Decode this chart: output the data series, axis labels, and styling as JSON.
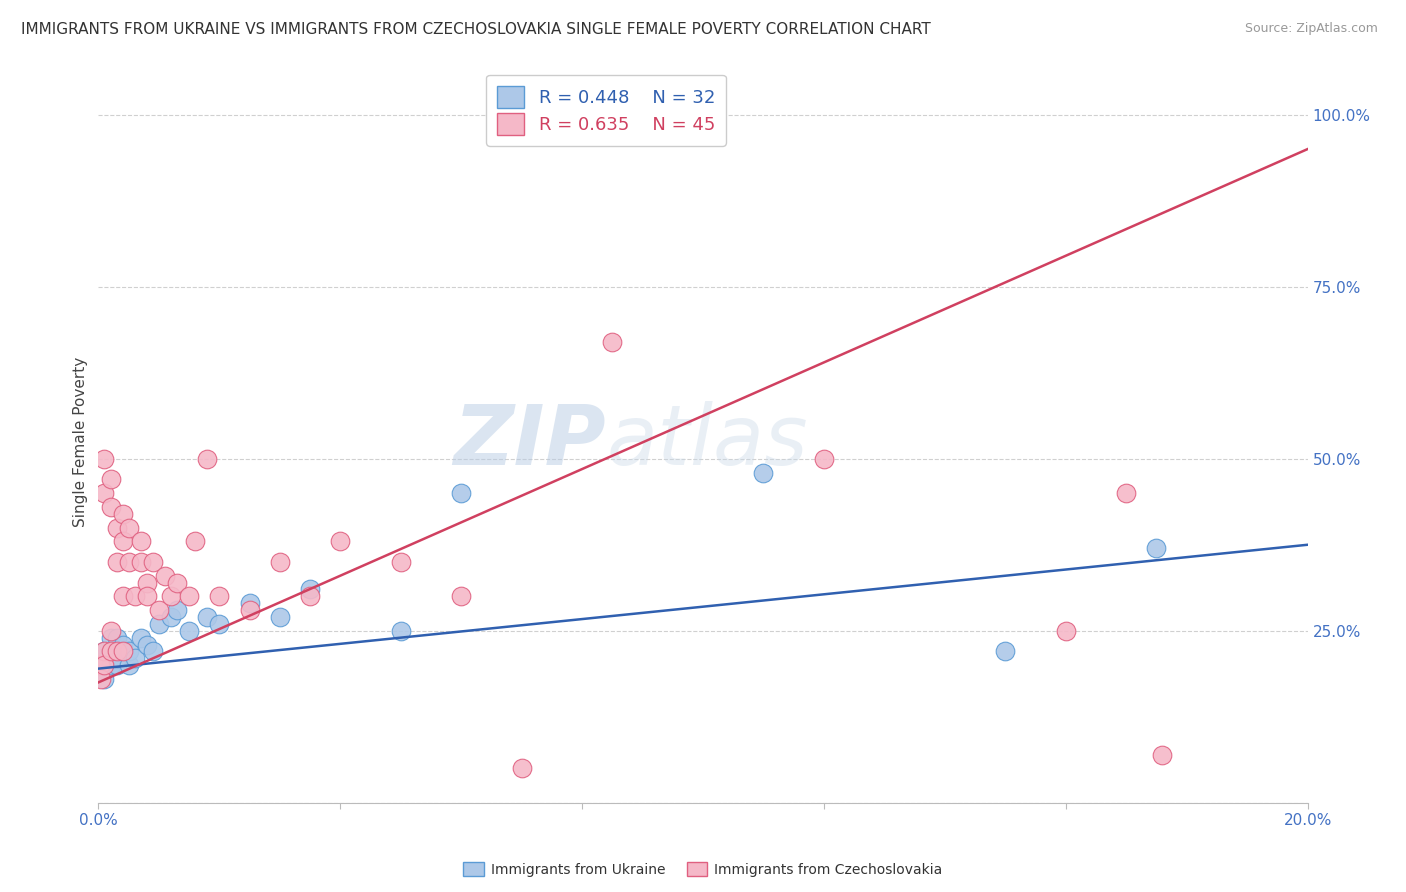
{
  "title": "IMMIGRANTS FROM UKRAINE VS IMMIGRANTS FROM CZECHOSLOVAKIA SINGLE FEMALE POVERTY CORRELATION CHART",
  "source": "Source: ZipAtlas.com",
  "ylabel": "Single Female Poverty",
  "xlim": [
    0.0,
    0.2
  ],
  "ylim": [
    0.0,
    1.05
  ],
  "xticks": [
    0.0,
    0.04,
    0.08,
    0.12,
    0.16,
    0.2
  ],
  "xticklabels": [
    "0.0%",
    "",
    "",
    "",
    "",
    "20.0%"
  ],
  "yticks": [
    0.0,
    0.25,
    0.5,
    0.75,
    1.0
  ],
  "yticklabels_right": [
    "",
    "25.0%",
    "50.0%",
    "75.0%",
    "100.0%"
  ],
  "ukraine_color": "#adc8e8",
  "ukraine_edge": "#5b9bd5",
  "czechoslovakia_color": "#f5b8c8",
  "czechoslovakia_edge": "#e06080",
  "ukraine_line_color": "#3060b0",
  "czechoslovakia_line_color": "#d04060",
  "legend_ukraine_R": "R = 0.448",
  "legend_ukraine_N": "N = 32",
  "legend_czech_R": "R = 0.635",
  "legend_czech_N": "N = 45",
  "watermark_zip": "ZIP",
  "watermark_atlas": "atlas",
  "ukraine_x": [
    0.0005,
    0.001,
    0.001,
    0.001,
    0.002,
    0.002,
    0.002,
    0.003,
    0.003,
    0.003,
    0.004,
    0.004,
    0.005,
    0.005,
    0.006,
    0.007,
    0.008,
    0.009,
    0.01,
    0.012,
    0.013,
    0.015,
    0.018,
    0.02,
    0.025,
    0.03,
    0.035,
    0.05,
    0.06,
    0.11,
    0.15,
    0.175
  ],
  "ukraine_y": [
    0.195,
    0.18,
    0.21,
    0.22,
    0.2,
    0.22,
    0.24,
    0.2,
    0.21,
    0.24,
    0.22,
    0.23,
    0.2,
    0.22,
    0.21,
    0.24,
    0.23,
    0.22,
    0.26,
    0.27,
    0.28,
    0.25,
    0.27,
    0.26,
    0.29,
    0.27,
    0.31,
    0.25,
    0.45,
    0.48,
    0.22,
    0.37
  ],
  "czechoslovakia_x": [
    0.0003,
    0.0005,
    0.001,
    0.001,
    0.001,
    0.001,
    0.002,
    0.002,
    0.002,
    0.002,
    0.003,
    0.003,
    0.003,
    0.004,
    0.004,
    0.004,
    0.004,
    0.005,
    0.005,
    0.006,
    0.007,
    0.007,
    0.008,
    0.008,
    0.009,
    0.01,
    0.011,
    0.012,
    0.013,
    0.015,
    0.016,
    0.018,
    0.02,
    0.025,
    0.03,
    0.035,
    0.04,
    0.05,
    0.06,
    0.07,
    0.085,
    0.12,
    0.16,
    0.17,
    0.176
  ],
  "czechoslovakia_y": [
    0.2,
    0.18,
    0.22,
    0.5,
    0.45,
    0.2,
    0.25,
    0.43,
    0.47,
    0.22,
    0.4,
    0.35,
    0.22,
    0.38,
    0.42,
    0.3,
    0.22,
    0.4,
    0.35,
    0.3,
    0.38,
    0.35,
    0.32,
    0.3,
    0.35,
    0.28,
    0.33,
    0.3,
    0.32,
    0.3,
    0.38,
    0.5,
    0.3,
    0.28,
    0.35,
    0.3,
    0.38,
    0.35,
    0.3,
    0.05,
    0.67,
    0.5,
    0.25,
    0.45,
    0.07
  ],
  "grid_color": "#d0d0d0",
  "background_color": "#ffffff",
  "title_fontsize": 11,
  "axis_label_fontsize": 11,
  "tick_fontsize": 11,
  "legend_fontsize": 13
}
